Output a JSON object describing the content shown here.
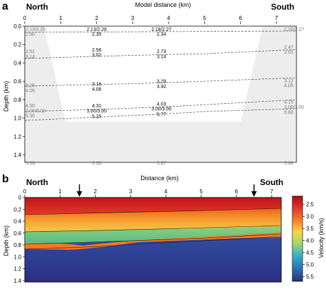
{
  "panel_a": {
    "letter": "a",
    "north_label": "North",
    "south_label": "South",
    "xlabel": "Model distance (km)",
    "ylabel": "Depth (km)",
    "x_ticks": [
      "0",
      "1",
      "2",
      "3",
      "4",
      "5",
      "6",
      "7"
    ],
    "y_ticks": [
      "0.0",
      "0.2",
      "0.4",
      "0.6",
      "0.8",
      "1.0",
      "1.2",
      "1.4"
    ],
    "velocity_labels": [
      {
        "text": "2.13/2.25",
        "x": 0.3,
        "d": 0.035,
        "grey": true
      },
      {
        "text": "2.50",
        "x": 0.3,
        "d": 0.085,
        "grey": true
      },
      {
        "text": "2.13/2.26",
        "x": 2.0,
        "d": 0.035,
        "grey": false
      },
      {
        "text": "2.35",
        "x": 2.0,
        "d": 0.085,
        "grey": false
      },
      {
        "text": "2.18/2.27",
        "x": 3.8,
        "d": 0.035,
        "grey": false
      },
      {
        "text": "2.34",
        "x": 3.8,
        "d": 0.085,
        "grey": false
      },
      {
        "text": "2.20/2.27",
        "x": 7.25,
        "d": 0.035,
        "grey": true
      },
      {
        "text": "2.47",
        "x": 7.3,
        "d": 0.23,
        "grey": true
      },
      {
        "text": "2.51",
        "x": 0.15,
        "d": 0.275,
        "grey": true
      },
      {
        "text": "3.14",
        "x": 0.15,
        "d": 0.33,
        "grey": true
      },
      {
        "text": "2.56",
        "x": 2.0,
        "d": 0.26,
        "grey": false
      },
      {
        "text": "3.02",
        "x": 2.0,
        "d": 0.31,
        "grey": false
      },
      {
        "text": "2.73",
        "x": 3.8,
        "d": 0.275,
        "grey": false
      },
      {
        "text": "3.14",
        "x": 3.8,
        "d": 0.33,
        "grey": false
      },
      {
        "text": "3.01",
        "x": 7.3,
        "d": 0.28,
        "grey": true
      },
      {
        "text": "3.25",
        "x": 0.15,
        "d": 0.645,
        "grey": true
      },
      {
        "text": "4.05",
        "x": 0.15,
        "d": 0.7,
        "grey": true
      },
      {
        "text": "3.16",
        "x": 2.0,
        "d": 0.63,
        "grey": false
      },
      {
        "text": "4.06",
        "x": 2.0,
        "d": 0.685,
        "grey": false
      },
      {
        "text": "3.29",
        "x": 3.8,
        "d": 0.6,
        "grey": false
      },
      {
        "text": "3.92",
        "x": 3.8,
        "d": 0.655,
        "grey": false
      },
      {
        "text": "3.12",
        "x": 7.3,
        "d": 0.59,
        "grey": true
      },
      {
        "text": "4.05",
        "x": 7.3,
        "d": 0.645,
        "grey": true
      },
      {
        "text": "4.30",
        "x": 0.15,
        "d": 0.865,
        "grey": true
      },
      {
        "text": "3.00/3.00",
        "x": 0.3,
        "d": 0.92,
        "grey": true
      },
      {
        "text": "5.30",
        "x": 0.15,
        "d": 0.975,
        "grey": true
      },
      {
        "text": "4.31",
        "x": 2.0,
        "d": 0.865,
        "grey": false
      },
      {
        "text": "3.00/3.00",
        "x": 2.0,
        "d": 0.92,
        "grey": false
      },
      {
        "text": "5.25",
        "x": 2.0,
        "d": 0.98,
        "grey": false
      },
      {
        "text": "4.03",
        "x": 3.8,
        "d": 0.845,
        "grey": false
      },
      {
        "text": "3.00/3.00",
        "x": 3.8,
        "d": 0.9,
        "grey": false
      },
      {
        "text": "5.77",
        "x": 3.8,
        "d": 0.96,
        "grey": false
      },
      {
        "text": "4.15",
        "x": 7.3,
        "d": 0.825,
        "grey": true
      },
      {
        "text": "3.00/3.00",
        "x": 7.25,
        "d": 0.88,
        "grey": true
      },
      {
        "text": "5.80",
        "x": 7.3,
        "d": 0.935,
        "grey": true
      },
      {
        "text": "5.39",
        "x": 0.15,
        "d": 1.49,
        "grey": true
      },
      {
        "text": "5.36",
        "x": 2.0,
        "d": 1.49,
        "grey": true
      },
      {
        "text": "5.87",
        "x": 3.8,
        "d": 1.49,
        "grey": true
      },
      {
        "text": "5.90",
        "x": 7.3,
        "d": 1.49,
        "grey": true
      }
    ]
  },
  "panel_b": {
    "letter": "b",
    "north_label": "North",
    "south_label": "South",
    "xlabel": "Distance (km)",
    "ylabel": "Depth (km)",
    "x_ticks": [
      "0",
      "1",
      "2",
      "3",
      "4",
      "5",
      "6",
      "7"
    ],
    "y_ticks": [
      "0",
      "0.2",
      "0.4",
      "0.6",
      "0.8",
      "1.0",
      "1.2",
      "1.4"
    ],
    "arrow_positions_km": [
      1.55,
      6.5
    ],
    "colorbar": {
      "label": "Velocity (km/s)",
      "ticks": [
        "2.5",
        "3.0",
        "3.5",
        "4.0",
        "4.5",
        "5.0",
        "5.5"
      ]
    }
  },
  "colors": {
    "grey_fill": "#ededed",
    "red": "#d7191c",
    "orange": "#f58a1f",
    "yellow": "#f5c84a",
    "green": "#7cc67a",
    "blue": "#2f3f98",
    "dark_blue": "#2b2f7f"
  }
}
